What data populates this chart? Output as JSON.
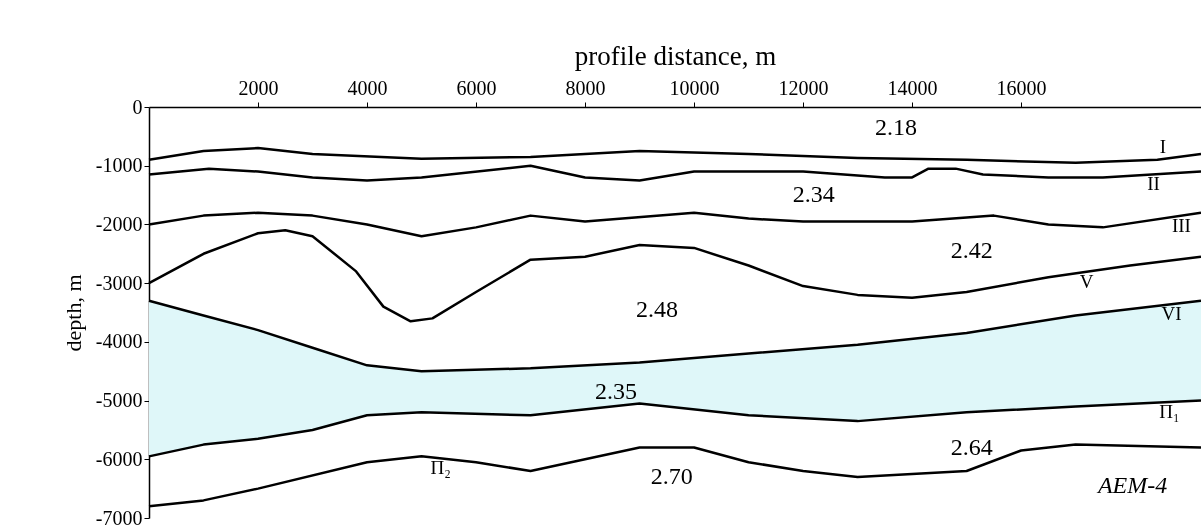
{
  "chart_data": {
    "type": "line",
    "xlabel": "profile distance, m",
    "ylabel": "depth, m",
    "xlim": [
      0,
      19300
    ],
    "xticks": [
      2000,
      4000,
      6000,
      8000,
      10000,
      12000,
      14000,
      16000
    ],
    "ylim": [
      -7000,
      0
    ],
    "yticks": [
      0,
      -1000,
      -2000,
      -3000,
      -4000,
      -5000,
      -6000,
      -7000
    ],
    "grid": false,
    "marker": "none",
    "line_style": "solid",
    "series": [
      {
        "color": "#000000",
        "x": [
          0,
          1000,
          2000,
          3000,
          4000,
          5000,
          7000,
          9000,
          11000,
          13000,
          15000,
          17000,
          19300
        ],
        "values": [
          -3300,
          -3550,
          -3800,
          -4100,
          -4400,
          -4500,
          -4450,
          -4350,
          -4200,
          -4050,
          -3850,
          -3550,
          -3300
        ]
      },
      {
        "color": "#000000",
        "x": [
          0,
          1000,
          2000,
          3000,
          4000,
          5000,
          7000,
          9000,
          11000,
          13000,
          15000,
          17000,
          19300
        ],
        "values": [
          -5950,
          -5750,
          -5650,
          -5500,
          -5250,
          -5200,
          -5250,
          -5050,
          -5250,
          -5350,
          -5200,
          -5100,
          -5000
        ]
      },
      {
        "color": "#000000",
        "x": [
          0,
          1000,
          2000,
          3000,
          5000,
          7000,
          9000,
          11000,
          13000,
          15000,
          17000,
          18500,
          19300
        ],
        "values": [
          -900,
          -750,
          -700,
          -800,
          -880,
          -850,
          -750,
          -800,
          -870,
          -900,
          -950,
          -900,
          -800
        ]
      },
      {
        "color": "#000000",
        "x": [
          0,
          1100,
          2000,
          3000,
          4000,
          5000,
          7000,
          8000,
          9000,
          10000,
          12000,
          13500,
          14000,
          14300,
          14800,
          15300,
          16500,
          17500,
          19300
        ],
        "values": [
          -1150,
          -1050,
          -1100,
          -1200,
          -1250,
          -1200,
          -1000,
          -1200,
          -1250,
          -1100,
          -1100,
          -1200,
          -1200,
          -1050,
          -1050,
          -1150,
          -1200,
          -1200,
          -1100
        ]
      },
      {
        "color": "#000000",
        "x": [
          0,
          1000,
          2000,
          3000,
          4000,
          5000,
          6000,
          7000,
          8000,
          10000,
          11000,
          12000,
          14000,
          15500,
          16500,
          17500,
          19300
        ],
        "values": [
          -2000,
          -1850,
          -1800,
          -1850,
          -2000,
          -2200,
          -2050,
          -1850,
          -1950,
          -1800,
          -1900,
          -1950,
          -1950,
          -1850,
          -2000,
          -2050,
          -1800
        ]
      },
      {
        "color": "#000000",
        "x": [
          0,
          1000,
          2000,
          2500,
          3000,
          3800,
          4300,
          4800,
          5200,
          6000,
          7000,
          8000,
          9000,
          10000,
          11000,
          12000,
          13000,
          14000,
          15000,
          16500,
          18000,
          19300
        ],
        "values": [
          -3000,
          -2500,
          -2150,
          -2100,
          -2200,
          -2800,
          -3400,
          -3650,
          -3600,
          -3150,
          -2600,
          -2550,
          -2350,
          -2400,
          -2700,
          -3050,
          -3200,
          -3250,
          -3150,
          -2900,
          -2700,
          -2550
        ]
      },
      {
        "color": "#000000",
        "x": [
          0,
          1000,
          2000,
          4000,
          5000,
          6000,
          7000,
          8000,
          9000,
          10000,
          11000,
          12000,
          13000,
          15000,
          16000,
          17000,
          19300
        ],
        "values": [
          -6800,
          -6700,
          -6500,
          -6050,
          -5950,
          -6050,
          -6200,
          -6000,
          -5800,
          -5800,
          -6050,
          -6200,
          -6300,
          -6200,
          -5850,
          -5750,
          -5800
        ]
      }
    ],
    "annotations": [
      "2.18",
      "2.34",
      "2.42",
      "2.48",
      "2.35",
      "2.64",
      "2.70",
      "AEM-4",
      {
        "text": "I",
        "x": 18600,
        "y": -888
      },
      {
        "text": "II",
        "x": 18430,
        "y": -1148
      },
      {
        "text": "III",
        "x": 18940,
        "y": -1850
      },
      {
        "text": "V",
        "x": 17200,
        "y": -2807
      },
      {
        "text": "VI",
        "x": 18760,
        "y": -3359
      },
      {
        "text": "Π₁",
        "x": 18720,
        "y": -5025
      },
      {
        "text": "Π₂",
        "x": 5350,
        "y": -5985
      }
    ]
  }
}
